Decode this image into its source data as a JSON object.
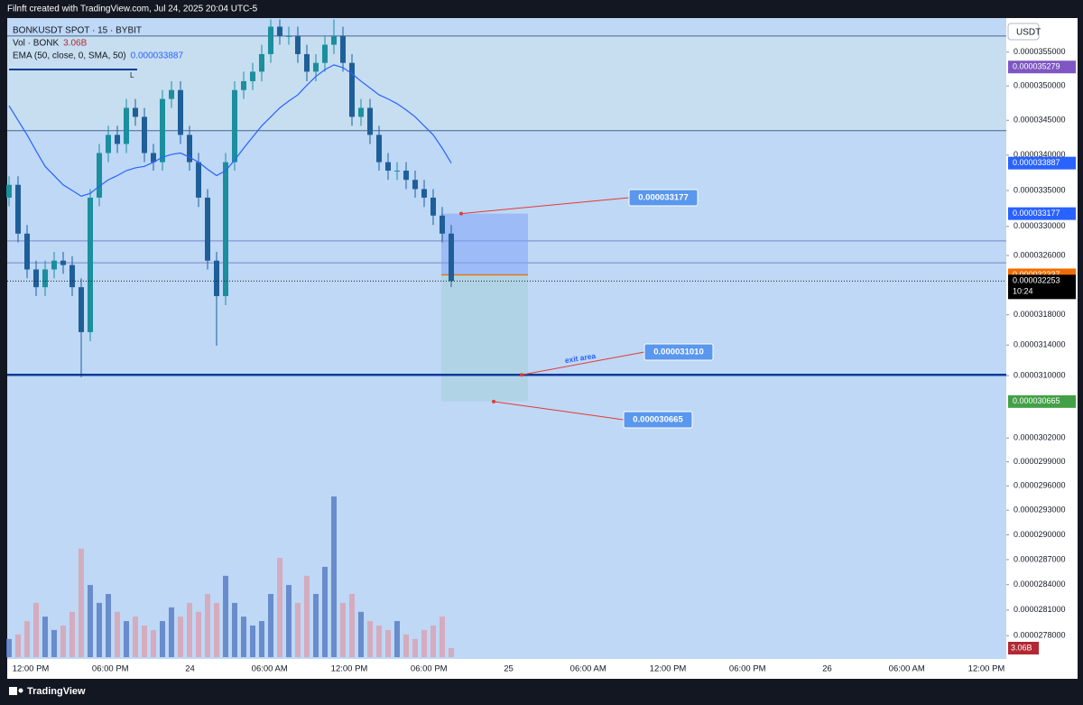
{
  "chart_data": {
    "type": "candlestick",
    "header": "Filnft created with TradingView.com, Jul 24, 2025 20:04 UTC-5",
    "footer": "TradingView",
    "symbol": "BONKUSDT SPOT · 15 · BYBIT",
    "volume_title": "Vol · BONK",
    "ema_title": "EMA (50, close, 0, SMA, 50)",
    "currency": "USDT",
    "drawing_label": "L",
    "log_scale": true,
    "ylim": [
      2.753e-05,
      3.601e-05
    ],
    "yticks": [
      {
        "value": 3.55e-05,
        "label": "0.0000355000"
      },
      {
        "value": 3.5e-05,
        "label": "0.0000350000"
      },
      {
        "value": 3.45e-05,
        "label": "0.0000345000"
      },
      {
        "value": 3.4e-05,
        "label": "0.0000340000"
      },
      {
        "value": 3.35e-05,
        "label": "0.0000335000"
      },
      {
        "value": 3.3e-05,
        "label": "0.0000330000"
      },
      {
        "value": 3.26e-05,
        "label": "0.0000326000"
      },
      {
        "value": 3.18e-05,
        "label": "0.0000318000"
      },
      {
        "value": 3.14e-05,
        "label": "0.0000314000"
      },
      {
        "value": 3.1e-05,
        "label": "0.0000310000"
      },
      {
        "value": 3.02e-05,
        "label": "0.0000302000"
      },
      {
        "value": 2.99e-05,
        "label": "0.0000299000"
      },
      {
        "value": 2.96e-05,
        "label": "0.0000296000"
      },
      {
        "value": 2.93e-05,
        "label": "0.0000293000"
      },
      {
        "value": 2.9e-05,
        "label": "0.0000290000"
      },
      {
        "value": 2.87e-05,
        "label": "0.0000287000"
      },
      {
        "value": 2.84e-05,
        "label": "0.0000284000"
      },
      {
        "value": 2.81e-05,
        "label": "0.0000281000"
      },
      {
        "value": 2.78e-05,
        "label": "0.0000278000"
      }
    ],
    "time_labels": [
      "12:00 PM",
      "06:00 PM",
      "24",
      "06:00 AM",
      "12:00 PM",
      "06:00 PM",
      "25",
      "06:00 AM",
      "12:00 PM",
      "06:00 PM",
      "26",
      "06:00 AM",
      "12:00 PM"
    ],
    "up_color": "#1b8f9e",
    "down_color": "#1f5f99",
    "open": [
      3.34e-05,
      3.358e-05,
      3.29e-05,
      3.241e-05,
      3.217e-05,
      3.241e-05,
      3.253e-05,
      3.247e-05,
      3.217e-05,
      3.157e-05,
      3.34e-05,
      3.403e-05,
      3.429e-05,
      3.416e-05,
      3.468e-05,
      3.455e-05,
      3.403e-05,
      3.39e-05,
      3.481e-05,
      3.494e-05,
      3.429e-05,
      3.39e-05,
      3.34e-05,
      3.253e-05,
      3.205e-05,
      3.39e-05,
      3.494e-05,
      3.507e-05,
      3.521e-05,
      3.547e-05,
      3.588e-05,
      3.574e-05,
      3.574e-05,
      3.547e-05,
      3.521e-05,
      3.534e-05,
      3.561e-05,
      3.574e-05,
      3.534e-05,
      3.455e-05,
      3.468e-05,
      3.429e-05,
      3.39e-05,
      3.378e-05,
      3.378e-05,
      3.365e-05,
      3.352e-05,
      3.34e-05,
      3.315e-05,
      3.29e-05
    ],
    "high": [
      3.37e-05,
      3.37e-05,
      3.302e-05,
      3.253e-05,
      3.253e-05,
      3.265e-05,
      3.265e-05,
      3.259e-05,
      3.229e-05,
      3.352e-05,
      3.416e-05,
      3.442e-05,
      3.442e-05,
      3.481e-05,
      3.481e-05,
      3.468e-05,
      3.416e-05,
      3.494e-05,
      3.507e-05,
      3.507e-05,
      3.442e-05,
      3.403e-05,
      3.352e-05,
      3.265e-05,
      3.403e-05,
      3.507e-05,
      3.521e-05,
      3.534e-05,
      3.561e-05,
      3.599e-05,
      3.599e-05,
      3.588e-05,
      3.588e-05,
      3.561e-05,
      3.547e-05,
      3.574e-05,
      3.599e-05,
      3.588e-05,
      3.547e-05,
      3.481e-05,
      3.481e-05,
      3.442e-05,
      3.403e-05,
      3.39e-05,
      3.39e-05,
      3.378e-05,
      3.365e-05,
      3.352e-05,
      3.327e-05,
      3.302e-05
    ],
    "low": [
      3.328e-05,
      3.278e-05,
      3.229e-05,
      3.205e-05,
      3.205e-05,
      3.229e-05,
      3.235e-05,
      3.205e-05,
      3.098e-05,
      3.145e-05,
      3.328e-05,
      3.39e-05,
      3.403e-05,
      3.403e-05,
      3.442e-05,
      3.39e-05,
      3.378e-05,
      3.378e-05,
      3.468e-05,
      3.416e-05,
      3.378e-05,
      3.327e-05,
      3.241e-05,
      3.139e-05,
      3.193e-05,
      3.378e-05,
      3.481e-05,
      3.494e-05,
      3.507e-05,
      3.534e-05,
      3.561e-05,
      3.561e-05,
      3.534e-05,
      3.507e-05,
      3.507e-05,
      3.521e-05,
      3.547e-05,
      3.521e-05,
      3.442e-05,
      3.442e-05,
      3.416e-05,
      3.378e-05,
      3.365e-05,
      3.365e-05,
      3.352e-05,
      3.34e-05,
      3.327e-05,
      3.302e-05,
      3.278e-05,
      3.217e-05
    ],
    "close": [
      3.358e-05,
      3.29e-05,
      3.241e-05,
      3.217e-05,
      3.241e-05,
      3.253e-05,
      3.247e-05,
      3.217e-05,
      3.157e-05,
      3.34e-05,
      3.403e-05,
      3.429e-05,
      3.416e-05,
      3.468e-05,
      3.455e-05,
      3.403e-05,
      3.39e-05,
      3.481e-05,
      3.494e-05,
      3.429e-05,
      3.39e-05,
      3.34e-05,
      3.253e-05,
      3.205e-05,
      3.39e-05,
      3.494e-05,
      3.507e-05,
      3.521e-05,
      3.547e-05,
      3.588e-05,
      3.574e-05,
      3.574e-05,
      3.547e-05,
      3.521e-05,
      3.534e-05,
      3.561e-05,
      3.574e-05,
      3.534e-05,
      3.455e-05,
      3.468e-05,
      3.429e-05,
      3.39e-05,
      3.378e-05,
      3.378e-05,
      3.365e-05,
      3.352e-05,
      3.34e-05,
      3.315e-05,
      3.29e-05,
      3.2253e-05
    ],
    "countdown": "10:24",
    "volume": {
      "up_color": "#5b7fc4",
      "down_color": "#d9a3b4",
      "label_color": "#b22833",
      "last_label": "3.06B",
      "values": [
        6100000000.0,
        7600000000.0,
        12100000000.0,
        18200000000.0,
        13600000000.0,
        9100000000.0,
        10600000000.0,
        15200000000.0,
        36400000000.0,
        24200000000.0,
        18200000000.0,
        21200000000.0,
        15200000000.0,
        12100000000.0,
        13600000000.0,
        10600000000.0,
        9100000000.0,
        12100000000.0,
        16700000000.0,
        13600000000.0,
        18200000000.0,
        15200000000.0,
        21200000000.0,
        18200000000.0,
        27300000000.0,
        18200000000.0,
        13600000000.0,
        10600000000.0,
        12100000000.0,
        21200000000.0,
        33300000000.0,
        24200000000.0,
        18200000000.0,
        27300000000.0,
        21200000000.0,
        30300000000.0,
        53900000000.0,
        18200000000.0,
        21200000000.0,
        15200000000.0,
        12100000000.0,
        10600000000.0,
        9100000000.0,
        12100000000.0,
        7600000000.0,
        6100000000.0,
        9100000000.0,
        10600000000.0,
        13600000000.0,
        3060000000.0
      ]
    },
    "ema": {
      "color": "#2962ff",
      "values": [
        3.471e-05,
        3.45e-05,
        3.429e-05,
        3.406e-05,
        3.384e-05,
        3.371e-05,
        3.358e-05,
        3.35e-05,
        3.342e-05,
        3.346e-05,
        3.356e-05,
        3.365e-05,
        3.371e-05,
        3.378e-05,
        3.382e-05,
        3.384e-05,
        3.39e-05,
        3.397e-05,
        3.401e-05,
        3.403e-05,
        3.397e-05,
        3.39e-05,
        3.38e-05,
        3.371e-05,
        3.378e-05,
        3.393e-05,
        3.41e-05,
        3.426e-05,
        3.442e-05,
        3.455e-05,
        3.468e-05,
        3.478e-05,
        3.487e-05,
        3.501e-05,
        3.514e-05,
        3.524e-05,
        3.531e-05,
        3.527e-05,
        3.518e-05,
        3.507e-05,
        3.497e-05,
        3.487e-05,
        3.481e-05,
        3.474e-05,
        3.465e-05,
        3.455e-05,
        3.442e-05,
        3.429e-05,
        3.41e-05,
        3.3887e-05
      ]
    },
    "levels": [
      3.574e-05,
      3.435e-05,
      3.28e-05,
      3.25e-05
    ],
    "alert_price": {
      "value": 3.5279e-05,
      "color": "#7e57c2"
    },
    "position": {
      "target": 3.3177e-05,
      "entry": 3.2337e-05,
      "stop": 3.0665e-05,
      "target_color": "#2962ff",
      "entry_color": "#ef6c00",
      "stop_color": "#43a047"
    },
    "exit": {
      "value": 3.101e-05,
      "label": "0.000031010",
      "text": "exit area"
    }
  }
}
